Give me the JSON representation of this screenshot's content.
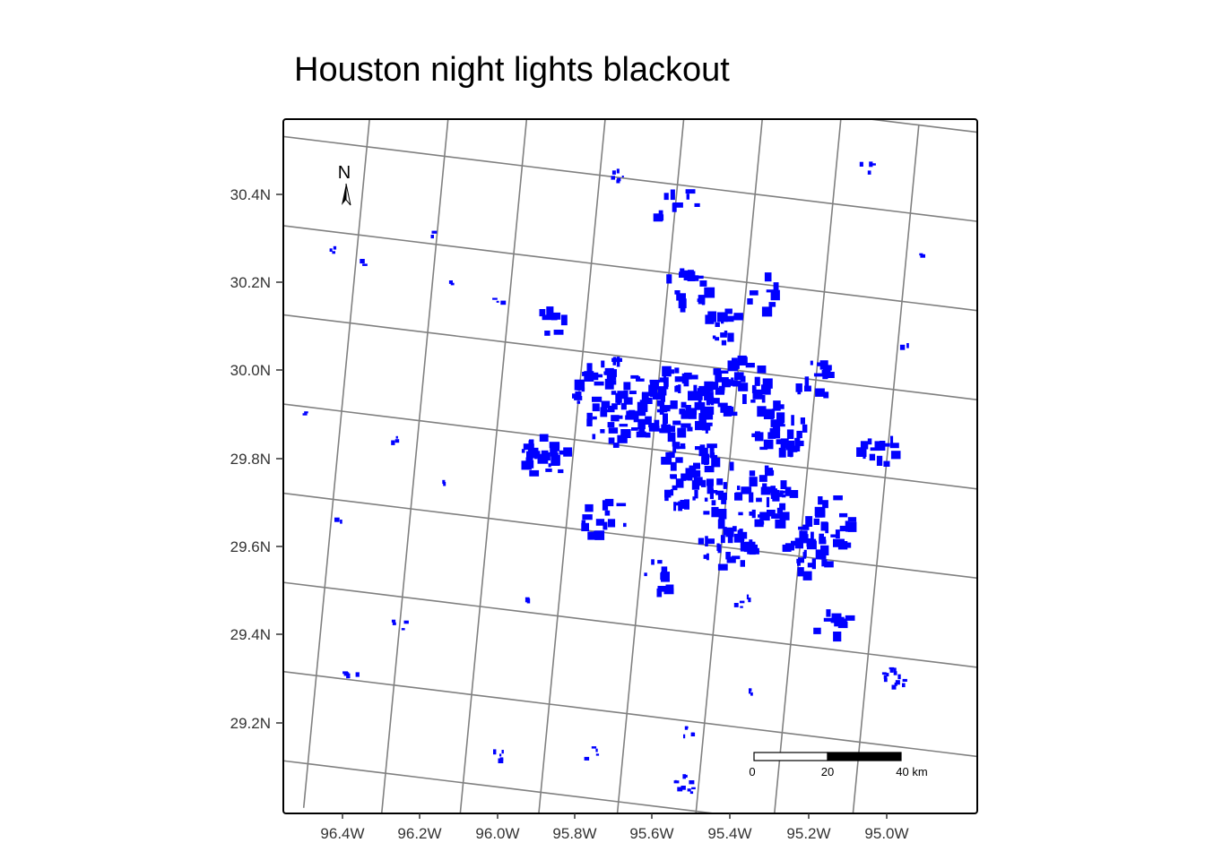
{
  "title": "Houston night lights blackout",
  "lat_labels": [
    "30.4N",
    "30.2N",
    "30.0N",
    "29.8N",
    "29.6N",
    "29.4N",
    "29.2N"
  ],
  "lon_labels": [
    "96.4W",
    "96.2W",
    "96.0W",
    "95.8W",
    "95.6W",
    "95.4W",
    "95.2W",
    "95.0W"
  ],
  "north_arrow": {
    "label": "N"
  },
  "scale_bar": {
    "labels": [
      "0",
      "20",
      "40 km"
    ]
  },
  "colors": {
    "blackout": "#0000ff",
    "graticule": "#808080",
    "frame": "#000000"
  },
  "icons": [
    "north-arrow-icon"
  ],
  "blackout_clusters": [
    {
      "lon": -95.7,
      "lat": 29.9,
      "r": 0.12,
      "n": 90
    },
    {
      "lon": -95.55,
      "lat": 29.9,
      "r": 0.1,
      "n": 70
    },
    {
      "lon": -95.48,
      "lat": 29.75,
      "r": 0.1,
      "n": 70
    },
    {
      "lon": -95.4,
      "lat": 29.97,
      "r": 0.08,
      "n": 45
    },
    {
      "lon": -95.28,
      "lat": 29.88,
      "r": 0.07,
      "n": 35
    },
    {
      "lon": -95.3,
      "lat": 29.72,
      "r": 0.08,
      "n": 40
    },
    {
      "lon": -95.87,
      "lat": 29.76,
      "r": 0.06,
      "n": 30
    },
    {
      "lon": -95.38,
      "lat": 29.62,
      "r": 0.08,
      "n": 35
    },
    {
      "lon": -95.13,
      "lat": 29.68,
      "r": 0.08,
      "n": 30
    },
    {
      "lon": -95.18,
      "lat": 29.6,
      "r": 0.06,
      "n": 22
    },
    {
      "lon": -95.55,
      "lat": 30.16,
      "r": 0.06,
      "n": 18
    },
    {
      "lon": -95.45,
      "lat": 30.1,
      "r": 0.05,
      "n": 14
    },
    {
      "lon": -95.2,
      "lat": 30.0,
      "r": 0.05,
      "n": 16
    },
    {
      "lon": -95.02,
      "lat": 29.85,
      "r": 0.05,
      "n": 14
    },
    {
      "lon": -95.7,
      "lat": 29.63,
      "r": 0.06,
      "n": 16
    },
    {
      "lon": -95.88,
      "lat": 30.06,
      "r": 0.04,
      "n": 8
    },
    {
      "lon": -95.1,
      "lat": 29.46,
      "r": 0.05,
      "n": 10
    },
    {
      "lon": -95.55,
      "lat": 29.52,
      "r": 0.05,
      "n": 10
    },
    {
      "lon": -95.35,
      "lat": 30.18,
      "r": 0.05,
      "n": 8
    },
    {
      "lon": -95.6,
      "lat": 30.35,
      "r": 0.06,
      "n": 10
    }
  ],
  "blackout_spots": [
    {
      "lon": -94.93,
      "lat": 29.35,
      "r": 0.03,
      "n": 14
    },
    {
      "lon": -95.43,
      "lat": 29.06,
      "r": 0.03,
      "n": 10
    },
    {
      "lon": -95.44,
      "lat": 29.18,
      "r": 0.02,
      "n": 5
    },
    {
      "lon": -95.91,
      "lat": 29.07,
      "r": 0.02,
      "n": 5
    },
    {
      "lon": -96.25,
      "lat": 29.74,
      "r": 0.02,
      "n": 3
    },
    {
      "lon": -96.38,
      "lat": 29.55,
      "r": 0.01,
      "n": 2
    },
    {
      "lon": -96.49,
      "lat": 29.79,
      "r": 0.01,
      "n": 2
    },
    {
      "lon": -96.46,
      "lat": 30.16,
      "r": 0.01,
      "n": 3
    },
    {
      "lon": -96.21,
      "lat": 30.22,
      "r": 0.01,
      "n": 2
    },
    {
      "lon": -96.2,
      "lat": 29.34,
      "r": 0.02,
      "n": 4
    },
    {
      "lon": -96.31,
      "lat": 29.22,
      "r": 0.02,
      "n": 4
    },
    {
      "lon": -95.68,
      "lat": 29.1,
      "r": 0.02,
      "n": 4
    },
    {
      "lon": -95.33,
      "lat": 29.48,
      "r": 0.02,
      "n": 5
    },
    {
      "lon": -95.29,
      "lat": 29.28,
      "r": 0.01,
      "n": 3
    },
    {
      "lon": -95.12,
      "lat": 30.49,
      "r": 0.02,
      "n": 4
    },
    {
      "lon": -95.75,
      "lat": 30.4,
      "r": 0.02,
      "n": 6
    },
    {
      "lon": -95.88,
      "lat": 29.43,
      "r": 0.01,
      "n": 2
    },
    {
      "lon": -96.12,
      "lat": 29.67,
      "r": 0.01,
      "n": 2
    },
    {
      "lon": -94.96,
      "lat": 30.31,
      "r": 0.01,
      "n": 2
    },
    {
      "lon": -94.98,
      "lat": 30.1,
      "r": 0.01,
      "n": 2
    },
    {
      "lon": -96.38,
      "lat": 30.14,
      "r": 0.01,
      "n": 2
    },
    {
      "lon": -96.02,
      "lat": 30.1,
      "r": 0.02,
      "n": 3
    },
    {
      "lon": -96.15,
      "lat": 30.12,
      "r": 0.01,
      "n": 2
    }
  ]
}
